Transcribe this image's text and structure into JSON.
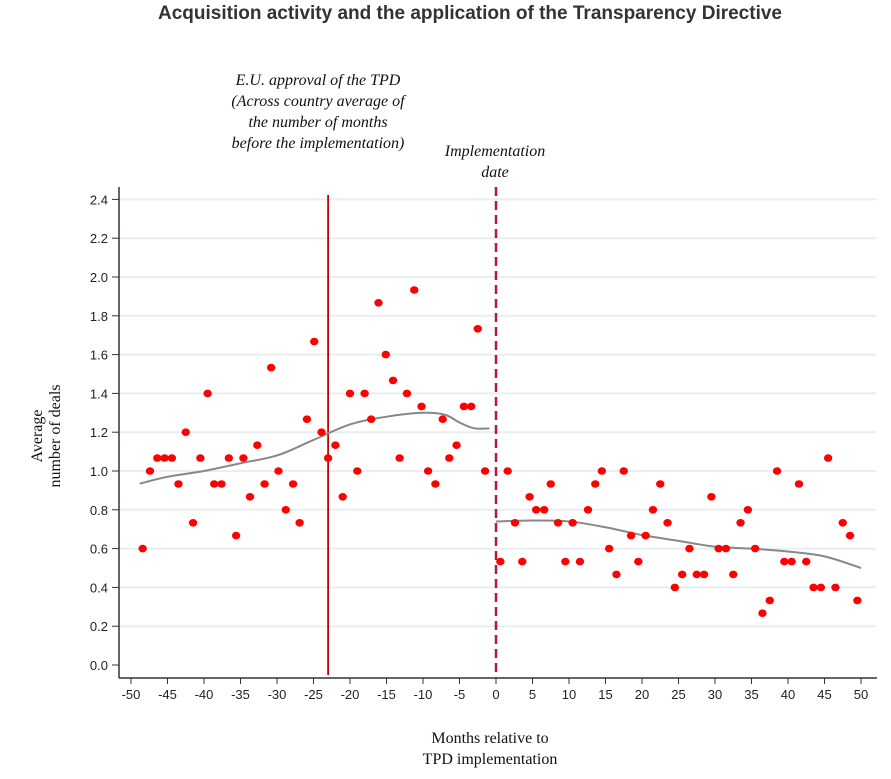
{
  "chart_data": {
    "type": "scatter",
    "title": "Acquisition activity and the application of the Transparency Directive",
    "xlabel": [
      "Months relative to",
      "TPD implementation"
    ],
    "ylabel": [
      "Average",
      "number of deals"
    ],
    "xlim": [
      -50,
      50
    ],
    "ylim": [
      0,
      2.4
    ],
    "xticks": [
      -50,
      -45,
      -40,
      -35,
      -30,
      -25,
      -20,
      -15,
      -10,
      -5,
      0,
      5,
      10,
      15,
      20,
      25,
      30,
      35,
      40,
      45,
      50
    ],
    "yticks": [
      "0.0",
      "0.2",
      "0.4",
      "0.6",
      "0.8",
      "1.0",
      "1.2",
      "1.4",
      "1.6",
      "1.8",
      "2.0",
      "2.2",
      "2.4"
    ],
    "grid": "horizontal",
    "colors": {
      "points": "#ff0000",
      "fit": "#888888",
      "approval_line": "#cc0000",
      "implementation_line": "#c0143c",
      "grid": "#e8eef2"
    },
    "annotations": [
      {
        "x": -23,
        "style": "solid",
        "lines": [
          "E.U. approval of the TPD",
          "(Across country average of",
          "the number of months",
          "before the implementation)"
        ]
      },
      {
        "x": 0,
        "style": "dashed",
        "lines": [
          "Implementation",
          "date"
        ]
      }
    ],
    "points": [
      [
        -48.4,
        0.6
      ],
      [
        -47.4,
        1.0
      ],
      [
        -46.4,
        1.067
      ],
      [
        -45.4,
        1.067
      ],
      [
        -44.4,
        1.067
      ],
      [
        -43.5,
        0.933
      ],
      [
        -42.5,
        1.2
      ],
      [
        -41.5,
        0.733
      ],
      [
        -40.5,
        1.067
      ],
      [
        -39.5,
        1.4
      ],
      [
        -38.6,
        0.933
      ],
      [
        -37.6,
        0.933
      ],
      [
        -36.6,
        1.067
      ],
      [
        -35.6,
        0.667
      ],
      [
        -34.6,
        1.067
      ],
      [
        -33.7,
        0.867
      ],
      [
        -32.7,
        1.133
      ],
      [
        -31.7,
        0.933
      ],
      [
        -30.8,
        1.533
      ],
      [
        -29.8,
        1.0
      ],
      [
        -28.8,
        0.8
      ],
      [
        -27.8,
        0.933
      ],
      [
        -26.9,
        0.733
      ],
      [
        -25.9,
        1.267
      ],
      [
        -24.9,
        1.667
      ],
      [
        -23.9,
        1.2
      ],
      [
        -23.0,
        1.067
      ],
      [
        -22.0,
        1.133
      ],
      [
        -21.0,
        0.867
      ],
      [
        -20.0,
        1.4
      ],
      [
        -19.0,
        1.0
      ],
      [
        -18.0,
        1.4
      ],
      [
        -17.1,
        1.267
      ],
      [
        -16.1,
        1.867
      ],
      [
        -15.1,
        1.6
      ],
      [
        -14.1,
        1.467
      ],
      [
        -13.2,
        1.067
      ],
      [
        -12.2,
        1.4
      ],
      [
        -11.2,
        1.933
      ],
      [
        -10.2,
        1.333
      ],
      [
        -9.3,
        1.0
      ],
      [
        -8.3,
        0.933
      ],
      [
        -7.3,
        1.267
      ],
      [
        -6.4,
        1.067
      ],
      [
        -5.4,
        1.133
      ],
      [
        -4.4,
        1.333
      ],
      [
        -3.4,
        1.333
      ],
      [
        -2.5,
        1.733
      ],
      [
        -1.5,
        1.0
      ],
      [
        0.6,
        0.533
      ],
      [
        1.6,
        1.0
      ],
      [
        2.6,
        0.733
      ],
      [
        3.6,
        0.533
      ],
      [
        4.6,
        0.867
      ],
      [
        5.5,
        0.8
      ],
      [
        6.6,
        0.8
      ],
      [
        7.5,
        0.933
      ],
      [
        8.5,
        0.733
      ],
      [
        9.5,
        0.533
      ],
      [
        10.5,
        0.733
      ],
      [
        11.5,
        0.533
      ],
      [
        12.6,
        0.8
      ],
      [
        13.6,
        0.933
      ],
      [
        14.5,
        1.0
      ],
      [
        15.5,
        0.6
      ],
      [
        16.5,
        0.467
      ],
      [
        17.5,
        1.0
      ],
      [
        18.5,
        0.667
      ],
      [
        19.5,
        0.533
      ],
      [
        20.5,
        0.667
      ],
      [
        21.5,
        0.8
      ],
      [
        22.5,
        0.933
      ],
      [
        23.5,
        0.733
      ],
      [
        24.5,
        0.4
      ],
      [
        25.5,
        0.467
      ],
      [
        26.5,
        0.6
      ],
      [
        27.5,
        0.467
      ],
      [
        28.5,
        0.467
      ],
      [
        29.5,
        0.867
      ],
      [
        30.5,
        0.6
      ],
      [
        31.5,
        0.6
      ],
      [
        32.5,
        0.467
      ],
      [
        33.5,
        0.733
      ],
      [
        34.5,
        0.8
      ],
      [
        35.5,
        0.6
      ],
      [
        36.5,
        0.267
      ],
      [
        37.5,
        0.333
      ],
      [
        38.5,
        1.0
      ],
      [
        39.5,
        0.533
      ],
      [
        40.5,
        0.533
      ],
      [
        41.5,
        0.933
      ],
      [
        42.5,
        0.533
      ],
      [
        43.5,
        0.4
      ],
      [
        44.5,
        0.4
      ],
      [
        45.5,
        1.067
      ],
      [
        46.5,
        0.4
      ],
      [
        47.5,
        0.733
      ],
      [
        48.5,
        0.667
      ],
      [
        49.5,
        0.333
      ]
    ],
    "fit_pre": [
      [
        -48.8,
        0.935
      ],
      [
        -45,
        0.97
      ],
      [
        -40,
        1.0
      ],
      [
        -35,
        1.04
      ],
      [
        -30,
        1.08
      ],
      [
        -25,
        1.16
      ],
      [
        -20,
        1.24
      ],
      [
        -15,
        1.28
      ],
      [
        -10,
        1.3
      ],
      [
        -7,
        1.29
      ],
      [
        -5,
        1.25
      ],
      [
        -3,
        1.22
      ],
      [
        -0.9,
        1.22
      ]
    ],
    "fit_post": [
      [
        0,
        0.74
      ],
      [
        5,
        0.745
      ],
      [
        10,
        0.74
      ],
      [
        15,
        0.71
      ],
      [
        20,
        0.67
      ],
      [
        25,
        0.64
      ],
      [
        30,
        0.61
      ],
      [
        35,
        0.6
      ],
      [
        40,
        0.585
      ],
      [
        45,
        0.56
      ],
      [
        50,
        0.5
      ]
    ]
  }
}
